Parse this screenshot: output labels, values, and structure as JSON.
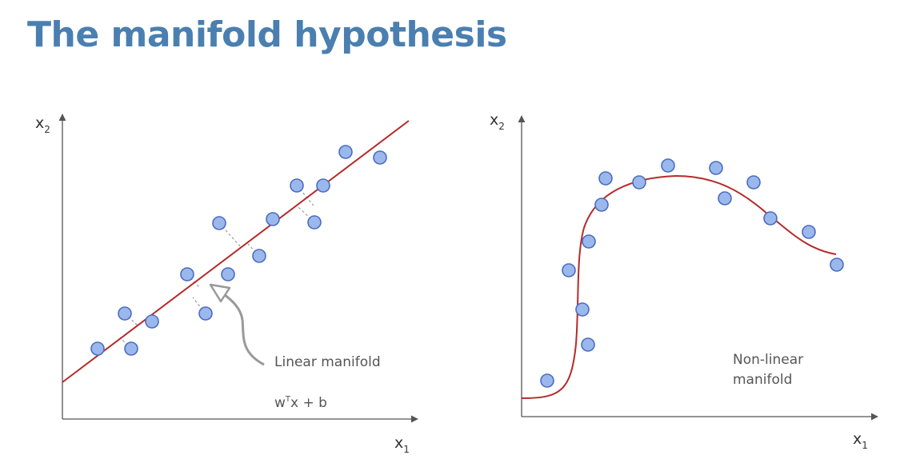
{
  "slide": {
    "title": "The manifold hypothesis"
  },
  "left_plot": {
    "x_axis_label": "x",
    "x_axis_sub": "1",
    "y_axis_label": "x",
    "y_axis_sub": "2",
    "annotation": "Linear manifold",
    "equation_w": "w",
    "equation_sup": "T",
    "equation_rest": "x + b",
    "curve_color": "#b52a2a",
    "point_color": "#9bb8ec"
  },
  "right_plot": {
    "x_axis_label": "x",
    "x_axis_sub": "1",
    "y_axis_label": "x",
    "y_axis_sub": "2",
    "annotation_line1": "Non-linear",
    "annotation_line2": "manifold",
    "curve_color": "#b52a2a",
    "point_color": "#9bb8ec"
  }
}
